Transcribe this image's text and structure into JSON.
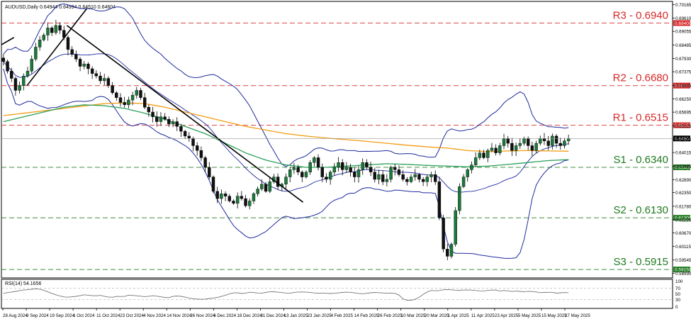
{
  "chart_data": {
    "type": "candlestick",
    "symbol_header": "AUDUSD,Daily  0.64944 0.64994 0.64510 0.64604",
    "current_price_label": "0.64604",
    "y_ticks": [
      "0.70165",
      "0.69610",
      "0.69055",
      "0.68485",
      "0.67930",
      "0.67375",
      "0.66805",
      "0.66250",
      "0.65695",
      "0.65125",
      "0.64570",
      "0.64015",
      "0.63445",
      "0.62890",
      "0.62350",
      "0.61780",
      "0.61225",
      "0.60670",
      "0.60115",
      "0.59545",
      "0.58990"
    ],
    "x_ticks": [
      "28 Aug 2024",
      "9 Sep 2024",
      "19 Sep 2024",
      "1 Oct 2024",
      "11 Oct 2024",
      "23 Oct 2024",
      "4 Nov 2024",
      "14 Nov 2024",
      "26 Nov 2024",
      "6 Dec 2024",
      "18 Dec 2024",
      "31 Dec 2024",
      "13 Jan 2025",
      "23 Jan 2025",
      "4 Feb 2025",
      "14 Feb 2025",
      "26 Feb 2025",
      "10 Mar 2025",
      "20 Mar 2025",
      "1 Apr 2025",
      "11 Apr 2025",
      "23 Apr 2025",
      "5 May 2025",
      "15 May 2025",
      "27 May 2025"
    ],
    "levels": [
      {
        "name": "R3 - 0.6940",
        "value": 0.694,
        "tag": "0.69400",
        "color": "#d62728"
      },
      {
        "name": "R2 - 0.6680",
        "value": 0.668,
        "tag": "0.66800",
        "color": "#d62728"
      },
      {
        "name": "R1 - 0.6515",
        "value": 0.6515,
        "tag": "0.65150",
        "color": "#d62728"
      },
      {
        "name": "S1 - 0.6340",
        "value": 0.634,
        "tag": "0.63400",
        "color": "#1f7a1f"
      },
      {
        "name": "S2 - 0.6130",
        "value": 0.613,
        "tag": "0.61300",
        "color": "#1f7a1f"
      },
      {
        "name": "S3 - 0.5915",
        "value": 0.5915,
        "tag": "0.59150",
        "color": "#1f7a1f"
      }
    ],
    "y_range": [
      0.588,
      0.703
    ],
    "close_path": [
      0.678,
      0.674,
      0.671,
      0.666,
      0.668,
      0.672,
      0.674,
      0.679,
      0.684,
      0.687,
      0.689,
      0.692,
      0.69,
      0.693,
      0.691,
      0.688,
      0.683,
      0.681,
      0.679,
      0.676,
      0.677,
      0.675,
      0.673,
      0.672,
      0.67,
      0.671,
      0.668,
      0.665,
      0.663,
      0.661,
      0.66,
      0.662,
      0.664,
      0.666,
      0.663,
      0.659,
      0.657,
      0.655,
      0.653,
      0.655,
      0.654,
      0.652,
      0.653,
      0.651,
      0.649,
      0.647,
      0.646,
      0.643,
      0.641,
      0.638,
      0.634,
      0.63,
      0.624,
      0.621,
      0.623,
      0.622,
      0.62,
      0.619,
      0.622,
      0.621,
      0.618,
      0.62,
      0.623,
      0.625,
      0.627,
      0.624,
      0.628,
      0.63,
      0.626,
      0.627,
      0.63,
      0.633,
      0.634,
      0.632,
      0.63,
      0.632,
      0.636,
      0.638,
      0.634,
      0.63,
      0.629,
      0.632,
      0.634,
      0.636,
      0.633,
      0.634,
      0.632,
      0.63,
      0.633,
      0.636,
      0.634,
      0.632,
      0.629,
      0.631,
      0.628,
      0.629,
      0.634,
      0.633,
      0.631,
      0.629,
      0.628,
      0.63,
      0.631,
      0.629,
      0.628,
      0.63,
      0.631,
      0.628,
      0.613,
      0.6,
      0.597,
      0.602,
      0.616,
      0.626,
      0.63,
      0.633,
      0.635,
      0.638,
      0.64,
      0.638,
      0.641,
      0.642,
      0.64,
      0.643,
      0.646,
      0.644,
      0.641,
      0.643,
      0.644,
      0.646,
      0.643,
      0.641,
      0.644,
      0.646,
      0.645,
      0.643,
      0.647,
      0.644,
      0.643,
      0.645,
      0.646
    ],
    "moving_averages": [
      {
        "color": "#f39c12",
        "path": [
          0.6555,
          0.6565,
          0.6575,
          0.6585,
          0.6595,
          0.6605,
          0.6608,
          0.6605,
          0.659,
          0.657,
          0.655,
          0.653,
          0.651,
          0.6495,
          0.648,
          0.647,
          0.6462,
          0.6455,
          0.6448,
          0.644,
          0.6432,
          0.6425,
          0.642,
          0.641,
          0.6405,
          0.6408,
          0.641,
          0.6408,
          0.6407
        ]
      },
      {
        "color": "#2ca05a",
        "path": [
          0.653,
          0.655,
          0.657,
          0.659,
          0.66,
          0.6596,
          0.6585,
          0.6565,
          0.654,
          0.651,
          0.648,
          0.644,
          0.64,
          0.637,
          0.635,
          0.634,
          0.634,
          0.6345,
          0.635,
          0.6355,
          0.6352,
          0.6348,
          0.6345,
          0.6342,
          0.6345,
          0.6352,
          0.636,
          0.6368,
          0.6372
        ]
      }
    ],
    "trend_lines": [
      {
        "from": [
          0.0,
          0.685
        ],
        "to": [
          0.022,
          0.688
        ]
      },
      {
        "from": [
          0.045,
          0.668
        ],
        "to": [
          0.15,
          0.7
        ]
      },
      {
        "from": [
          0.115,
          0.693
        ],
        "to": [
          0.53,
          0.6195
        ]
      }
    ],
    "rsi": {
      "label": "RSI(14) 54.1656",
      "y_ticks": [
        "100",
        "70",
        "50",
        "30",
        "0"
      ],
      "range": [
        0,
        100
      ],
      "path": [
        52,
        55,
        58,
        62,
        64,
        66,
        68,
        63,
        55,
        48,
        42,
        38,
        40,
        42,
        47,
        45,
        43,
        45,
        40,
        38,
        42,
        40,
        46,
        44,
        42,
        40,
        44,
        42,
        38,
        37,
        43,
        42,
        38,
        34,
        32,
        31,
        34,
        36,
        40,
        46,
        53,
        54,
        50,
        56,
        54,
        52,
        55,
        58,
        56,
        54,
        52,
        55,
        57,
        56,
        54,
        52,
        53,
        51,
        52,
        54,
        56,
        55,
        52,
        50,
        53,
        55,
        54,
        52,
        53,
        51,
        33,
        26,
        30,
        40,
        55,
        62,
        60,
        64,
        65,
        63,
        62,
        64,
        63,
        61,
        60,
        62,
        64,
        60,
        62,
        58,
        60,
        57,
        59,
        58,
        54,
        55,
        56,
        52,
        55,
        54
      ]
    }
  }
}
